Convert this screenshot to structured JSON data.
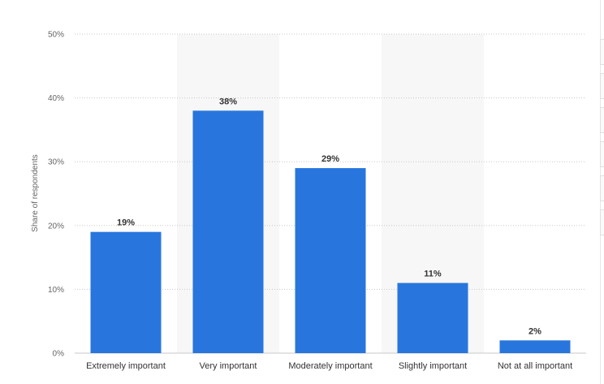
{
  "chart_data": {
    "type": "bar",
    "categories": [
      "Extremely important",
      "Very important",
      "Moderately important",
      "Slightly important",
      "Not at all important"
    ],
    "values": [
      19,
      38,
      29,
      11,
      2
    ],
    "data_labels": [
      "19%",
      "38%",
      "29%",
      "11%",
      "2%"
    ],
    "ylabel": "Share of respondents",
    "ylim": [
      0,
      50
    ],
    "yticks": [
      0,
      10,
      20,
      30,
      40,
      50
    ],
    "ytick_labels": [
      "0%",
      "10%",
      "20%",
      "30%",
      "40%",
      "50%"
    ],
    "grid": true,
    "legend": "none",
    "bar_color": "#2876dd",
    "band_color": "#f7f7f7"
  }
}
